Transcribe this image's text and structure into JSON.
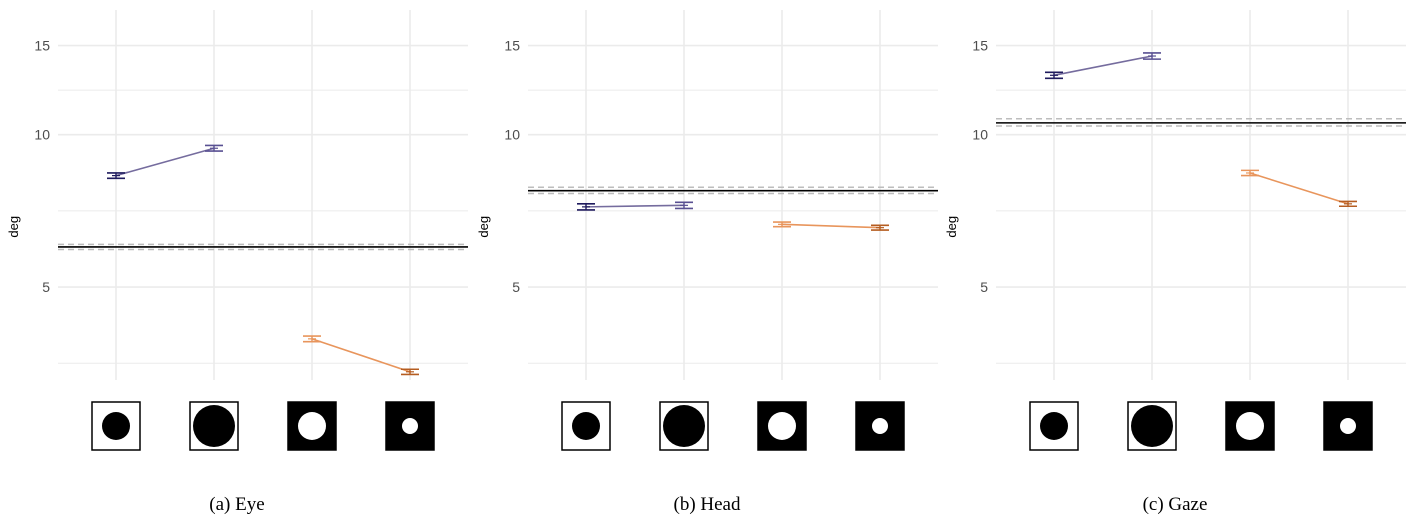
{
  "colors": {
    "grid": "#ebebeb",
    "baseline": "#000000",
    "baseline_ci": "#bdbdbd",
    "dark_fg_base": "#1f1b5e",
    "dark_fg_large": "#595092",
    "light_fg_large": "#e8955c",
    "light_fg_small": "#b55d21",
    "line_dark_fg": "#756c9e",
    "line_light_fg": "#e8955c"
  },
  "stimulus_icons": [
    {
      "name": "black-disc-on-white-icon",
      "background": "#ffffff",
      "disc": "#000000",
      "disc_size": "medium"
    },
    {
      "name": "large-black-disc-on-white-icon",
      "background": "#ffffff",
      "disc": "#000000",
      "disc_size": "large"
    },
    {
      "name": "white-disc-on-black-icon",
      "background": "#000000",
      "disc": "#ffffff",
      "disc_size": "medium"
    },
    {
      "name": "small-white-disc-on-black-icon",
      "background": "#000000",
      "disc": "#ffffff",
      "disc_size": "small"
    }
  ],
  "chart_data": [
    {
      "type": "line",
      "caption": "(a) Eye",
      "ylabel": "deg",
      "y_scale": "log",
      "y_ticks": [
        5,
        10,
        15
      ],
      "ylim": [
        3.13,
        17.0
      ],
      "x": [
        1,
        2,
        3,
        4
      ],
      "baseline": {
        "value": 6.0,
        "ci": [
          5.93,
          6.07
        ]
      },
      "series": [
        {
          "group": "dark-foreground",
          "x": [
            1,
            2
          ],
          "y": [
            8.3,
            9.4
          ],
          "err": [
            0.1,
            0.12
          ],
          "colors": [
            "#1f1b5e",
            "#595092"
          ]
        },
        {
          "group": "light-foreground",
          "x": [
            3,
            4
          ],
          "y": [
            3.95,
            3.4
          ],
          "err": [
            0.05,
            0.04
          ],
          "colors": [
            "#e8955c",
            "#b55d21"
          ]
        }
      ]
    },
    {
      "type": "line",
      "caption": "(b) Head",
      "ylabel": "deg",
      "y_scale": "log",
      "y_ticks": [
        5,
        10,
        15
      ],
      "ylim": [
        3.13,
        17.0
      ],
      "x": [
        1,
        2,
        3,
        4
      ],
      "baseline": {
        "value": 7.75,
        "ci": [
          7.65,
          7.87
        ]
      },
      "series": [
        {
          "group": "dark-foreground",
          "x": [
            1,
            2
          ],
          "y": [
            7.2,
            7.25
          ],
          "err": [
            0.1,
            0.1
          ],
          "colors": [
            "#1f1b5e",
            "#595092"
          ]
        },
        {
          "group": "light-foreground",
          "x": [
            3,
            4
          ],
          "y": [
            6.65,
            6.55
          ],
          "err": [
            0.07,
            0.07
          ],
          "colors": [
            "#e8955c",
            "#b55d21"
          ]
        }
      ]
    },
    {
      "type": "line",
      "caption": "(c) Gaze",
      "ylabel": "deg",
      "y_scale": "log",
      "y_ticks": [
        5,
        10,
        15
      ],
      "ylim": [
        3.13,
        17.0
      ],
      "x": [
        1,
        2,
        3,
        4
      ],
      "baseline": {
        "value": 10.55,
        "ci": [
          10.4,
          10.75
        ]
      },
      "series": [
        {
          "group": "dark-foreground",
          "x": [
            1,
            2
          ],
          "y": [
            13.1,
            14.3
          ],
          "err": [
            0.18,
            0.2
          ],
          "colors": [
            "#1f1b5e",
            "#595092"
          ]
        },
        {
          "group": "light-foreground",
          "x": [
            3,
            4
          ],
          "y": [
            8.4,
            7.3
          ],
          "err": [
            0.1,
            0.08
          ],
          "colors": [
            "#e8955c",
            "#b55d21"
          ]
        }
      ]
    }
  ]
}
